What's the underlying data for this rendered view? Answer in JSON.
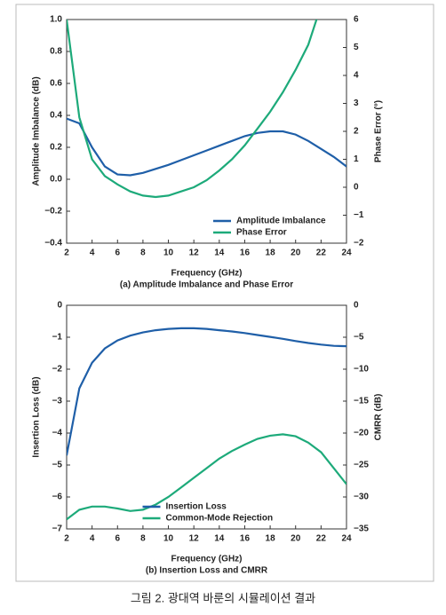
{
  "chart_data": [
    {
      "type": "line",
      "title": "(a) Amplitude Imbalance and Phase Error",
      "xlabel": "Frequency (GHz)",
      "ylabel": "Amplitude Imbalance (dB)",
      "y2label": "Phase Error (°)",
      "xlim": [
        2,
        24
      ],
      "xticks": [
        2,
        4,
        6,
        8,
        10,
        12,
        14,
        16,
        18,
        20,
        22,
        24
      ],
      "ylim": [
        -0.4,
        1.0
      ],
      "yticks": [
        {
          "value": -0.4,
          "label": "−0.4"
        },
        {
          "value": -0.2,
          "label": "−0.2"
        },
        {
          "value": 0,
          "label": "0.0"
        },
        0.2,
        0.4,
        0.6,
        0.8,
        {
          "value": 1,
          "label": "1.0"
        }
      ],
      "y2lim": [
        -2,
        6
      ],
      "y2ticks": [
        {
          "value": -2,
          "label": "−2"
        },
        {
          "value": -1,
          "label": "−1"
        },
        0,
        1,
        2,
        3,
        4,
        5,
        6
      ],
      "legend": "lower right",
      "x": [
        2,
        3,
        4,
        5,
        6,
        7,
        8,
        9,
        10,
        11,
        12,
        13,
        14,
        15,
        16,
        17,
        18,
        19,
        20,
        21,
        22,
        23,
        24
      ],
      "series": [
        {
          "name": "Amplitude Imbalance",
          "color": "#1f5fa8",
          "values": [
            0.38,
            0.35,
            0.2,
            0.08,
            0.03,
            0.025,
            0.04,
            0.065,
            0.09,
            0.12,
            0.15,
            0.18,
            0.21,
            0.24,
            0.27,
            0.29,
            0.3,
            0.3,
            0.28,
            0.24,
            0.19,
            0.14,
            0.08
          ]
        },
        {
          "name": "Phase Error",
          "color": "#1daa7a",
          "axis": "y2",
          "values": [
            6,
            2.5,
            1.0,
            0.4,
            0.1,
            -0.15,
            -0.3,
            -0.35,
            -0.3,
            -0.15,
            0.0,
            0.25,
            0.6,
            1.0,
            1.5,
            2.1,
            2.7,
            3.4,
            4.2,
            5.1,
            6.5,
            null,
            null
          ]
        }
      ]
    },
    {
      "type": "line",
      "title": "(b) Insertion Loss and CMRR",
      "xlabel": "Frequency (GHz)",
      "ylabel": "Insertion Loss (dB)",
      "y2label": "CMRR (dB)",
      "xlim": [
        2,
        24
      ],
      "xticks": [
        2,
        4,
        6,
        8,
        10,
        12,
        14,
        16,
        18,
        20,
        22,
        24
      ],
      "ylim": [
        -7,
        0
      ],
      "yticks": [
        {
          "value": -7,
          "label": "−7"
        },
        {
          "value": -6,
          "label": "−6"
        },
        {
          "value": -5,
          "label": "−5"
        },
        {
          "value": -4,
          "label": "−4"
        },
        {
          "value": -3,
          "label": "−3"
        },
        {
          "value": -2,
          "label": "−2"
        },
        {
          "value": -1,
          "label": "−1"
        },
        0
      ],
      "y2lim": [
        -35,
        0
      ],
      "y2ticks": [
        {
          "value": -35,
          "label": "−35"
        },
        {
          "value": -30,
          "label": "−30"
        },
        {
          "value": -25,
          "label": "−25"
        },
        {
          "value": -20,
          "label": "−20"
        },
        {
          "value": -15,
          "label": "−15"
        },
        {
          "value": -10,
          "label": "−10"
        },
        {
          "value": -5,
          "label": "−5"
        },
        0
      ],
      "legend": "lower center",
      "x": [
        2,
        3,
        4,
        5,
        6,
        7,
        8,
        9,
        10,
        11,
        12,
        13,
        14,
        15,
        16,
        17,
        18,
        19,
        20,
        21,
        22,
        23,
        24
      ],
      "series": [
        {
          "name": "Insertion Loss",
          "color": "#1f5fa8",
          "values": [
            -4.7,
            -2.6,
            -1.8,
            -1.35,
            -1.1,
            -0.95,
            -0.85,
            -0.78,
            -0.74,
            -0.72,
            -0.72,
            -0.74,
            -0.78,
            -0.82,
            -0.87,
            -0.93,
            -0.99,
            -1.05,
            -1.12,
            -1.18,
            -1.23,
            -1.27,
            -1.28
          ]
        },
        {
          "name": "Common-Mode Rejection",
          "color": "#1daa7a",
          "axis": "y2",
          "values": [
            -33.5,
            -32,
            -31.5,
            -31.5,
            -31.8,
            -32.2,
            -32,
            -31.2,
            -30,
            -28.5,
            -27,
            -25.5,
            -24,
            -22.8,
            -21.8,
            -20.9,
            -20.4,
            -20.2,
            -20.5,
            -21.5,
            -23,
            -25.5,
            -28
          ]
        }
      ]
    }
  ],
  "caption": "그림 2. 광대역 바룬의 시뮬레이션 결과"
}
